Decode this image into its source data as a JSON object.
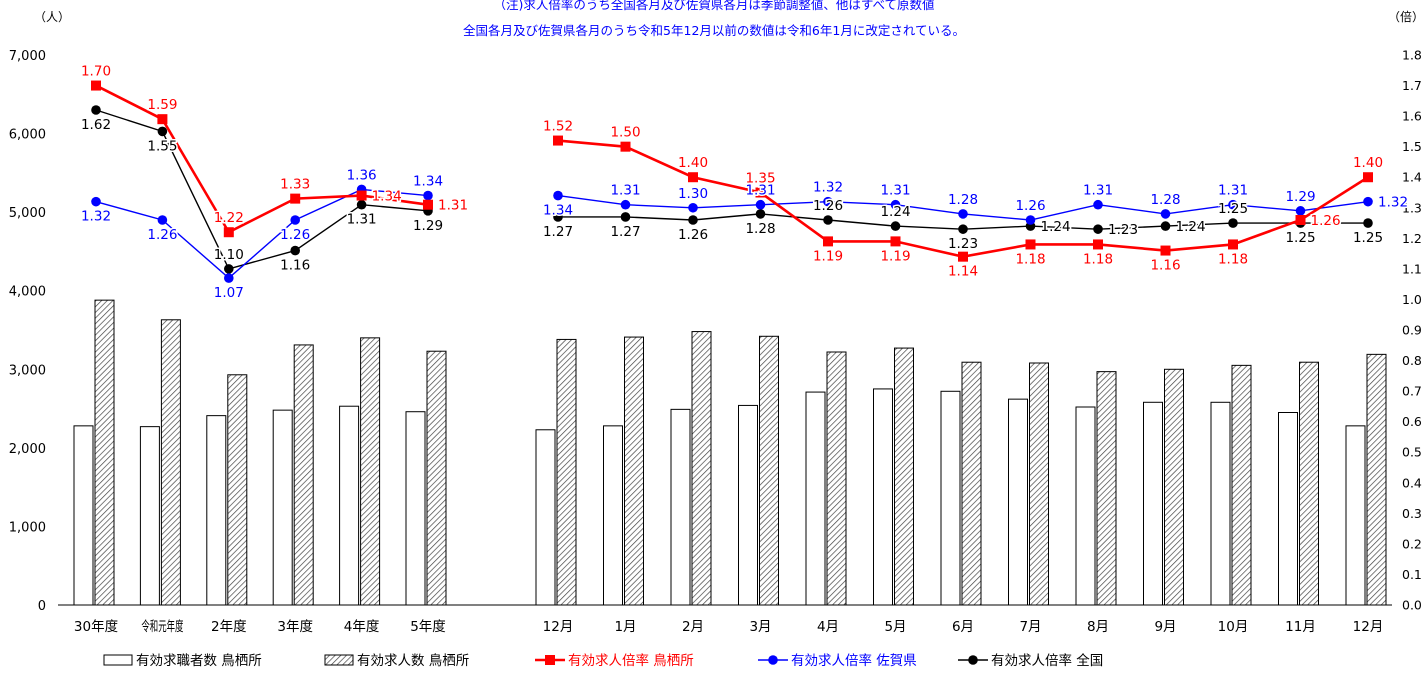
{
  "notes": {
    "line1": "（注)求人倍率のうち全国各月及び佐賀県各月は季節調整値、他はすべて原数値",
    "line2": "全国各月及び佐賀県各月のうち令和5年12月以前の数値は令和6年1月に改定されている。"
  },
  "units": {
    "left": "（人）",
    "right": "（倍）"
  },
  "colors": {
    "tosu": "#ff0000",
    "saga": "#0000ff",
    "national": "#000000",
    "bar_outline": "#000000"
  },
  "chart_data": {
    "type": "bar",
    "categories": [
      "30年度",
      "令和元年度",
      "2年度",
      "3年度",
      "4年度",
      "5年度",
      "12月",
      "1月",
      "2月",
      "3月",
      "4月",
      "5月",
      "6月",
      "7月",
      "8月",
      "9月",
      "10月",
      "11月",
      "12月"
    ],
    "group_break_after": 5,
    "left_axis": {
      "min": 0,
      "max": 7000,
      "ticks": [
        "0",
        "1,000",
        "2,000",
        "3,000",
        "4,000",
        "5,000",
        "6,000",
        "7,000"
      ],
      "tick_values": [
        0,
        1000,
        2000,
        3000,
        4000,
        5000,
        6000,
        7000
      ]
    },
    "right_axis": {
      "min": 0,
      "max": 1.8,
      "ticks": [
        "0.0",
        "0.1",
        "0.2",
        "0.3",
        "0.4",
        "0.5",
        "0.6",
        "0.7",
        "0.8",
        "0.9",
        "1.0",
        "1.1",
        "1.2",
        "1.3",
        "1.4",
        "1.5",
        "1.6",
        "1.7",
        "1.8"
      ],
      "tick_values": [
        0,
        0.1,
        0.2,
        0.3,
        0.4,
        0.5,
        0.6,
        0.7,
        0.8,
        0.9,
        1.0,
        1.1,
        1.2,
        1.3,
        1.4,
        1.5,
        1.6,
        1.7,
        1.8
      ]
    },
    "bars": [
      {
        "name": "有効求職者数 鳥栖所",
        "pattern": "plain",
        "values": [
          2280,
          2270,
          2410,
          2480,
          2530,
          2460,
          2230,
          2280,
          2490,
          2540,
          2710,
          2750,
          2720,
          2620,
          2520,
          2580,
          2580,
          2450,
          2280
        ]
      },
      {
        "name": "有効求人数 鳥栖所",
        "pattern": "hatched",
        "values": [
          3880,
          3630,
          2930,
          3310,
          3400,
          3230,
          3380,
          3410,
          3480,
          3420,
          3220,
          3270,
          3090,
          3080,
          2970,
          3000,
          3050,
          3090,
          3190
        ]
      }
    ],
    "lines": [
      {
        "key": "tosu",
        "name": "有効求人倍率 鳥栖所",
        "marker": "square",
        "values": [
          1.7,
          1.59,
          1.22,
          1.33,
          1.34,
          1.31,
          1.52,
          1.5,
          1.4,
          1.35,
          1.19,
          1.19,
          1.14,
          1.18,
          1.18,
          1.16,
          1.18,
          1.26,
          1.4
        ],
        "labels": [
          "1.70",
          "1.59",
          "1.22",
          "1.33",
          "1.34",
          "1.31",
          "1.52",
          "1.50",
          "1.40",
          "1.35",
          "1.19",
          "1.19",
          "1.14",
          "1.18",
          "1.18",
          "1.16",
          "1.18",
          "1.26",
          "1.40"
        ],
        "label_pos": [
          "above",
          "above",
          "above",
          "above",
          "right",
          "right",
          "above",
          "above",
          "above",
          "above",
          "below",
          "below",
          "below",
          "below",
          "below",
          "below",
          "below",
          "right",
          "above"
        ]
      },
      {
        "key": "saga",
        "name": "有効求人倍率 佐賀県",
        "marker": "circle",
        "values": [
          1.32,
          1.26,
          1.07,
          1.26,
          1.36,
          1.34,
          1.34,
          1.31,
          1.3,
          1.31,
          1.32,
          1.31,
          1.28,
          1.26,
          1.31,
          1.28,
          1.31,
          1.29,
          1.32
        ],
        "labels": [
          "1.32",
          "1.26",
          "1.07",
          "1.26",
          "1.36",
          "1.34",
          "1.34",
          "1.31",
          "1.30",
          "1.31",
          "1.32",
          "1.31",
          "1.28",
          "1.26",
          "1.31",
          "1.28",
          "1.31",
          "1.29",
          "1.32"
        ],
        "label_pos": [
          "below",
          "below",
          "below",
          "below",
          "above",
          "above",
          "below",
          "above",
          "above",
          "above",
          "above",
          "above",
          "above",
          "above",
          "above",
          "above",
          "above",
          "above",
          "right"
        ]
      },
      {
        "key": "national",
        "name": "有効求人倍率 全国",
        "marker": "circle",
        "values": [
          1.62,
          1.55,
          1.1,
          1.16,
          1.31,
          1.29,
          1.27,
          1.27,
          1.26,
          1.28,
          1.26,
          1.24,
          1.23,
          1.24,
          1.23,
          1.24,
          1.25,
          1.25,
          1.25
        ],
        "labels": [
          "1.62",
          "1.55",
          "1.10",
          "1.16",
          "1.31",
          "1.29",
          "1.27",
          "1.27",
          "1.26",
          "1.28",
          "1.26",
          "1.24",
          "1.23",
          "1.24",
          "1.23",
          "1.24",
          "1.25",
          "1.25",
          "1.25"
        ],
        "label_pos": [
          "below",
          "below",
          "above",
          "below",
          "below",
          "below",
          "below",
          "below",
          "below",
          "below",
          "above",
          "above",
          "below",
          "right",
          "right",
          "right",
          "above",
          "below",
          "below"
        ]
      }
    ],
    "legend_position": "bottom"
  }
}
